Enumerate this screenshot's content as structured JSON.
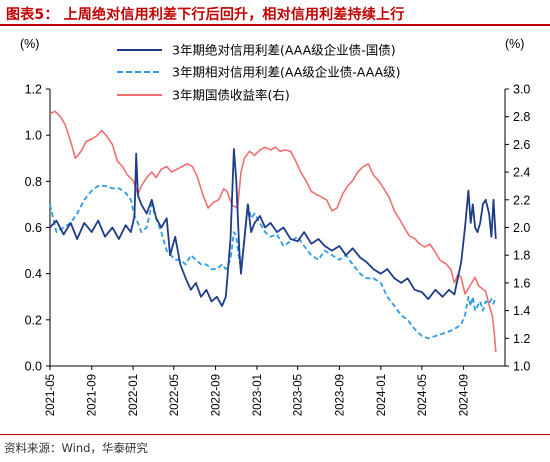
{
  "header": {
    "title": "图表5：  上周绝对信用利差下行后回升，相对信用利差持续上行"
  },
  "footer": {
    "source": "资料来源：Wind，华泰研究"
  },
  "chart_data": {
    "type": "line",
    "title": "图表5：  上周绝对信用利差下行后回升，相对信用利差持续上行",
    "y_left": {
      "label": "(%)",
      "range": [
        0.0,
        1.2
      ],
      "ticks": [
        "0.0",
        "0.2",
        "0.4",
        "0.6",
        "0.8",
        "1.0",
        "1.2"
      ]
    },
    "y_right": {
      "label": "(%)",
      "range": [
        1.0,
        3.0
      ],
      "ticks": [
        "1.0",
        "1.2",
        "1.4",
        "1.6",
        "1.8",
        "2.0",
        "2.2",
        "2.4",
        "2.6",
        "2.8",
        "3.0"
      ]
    },
    "x_range": [
      "2021-05",
      "2025-01"
    ],
    "x_ticks": [
      "2021-05",
      "2021-09",
      "2022-01",
      "2022-05",
      "2022-09",
      "2023-01",
      "2023-05",
      "2023-09",
      "2024-01",
      "2024-05",
      "2024-09"
    ],
    "legend_position": "top-center",
    "grid": false,
    "series": [
      {
        "name": "3年期绝对信用利差(AAA级企业债-国债)",
        "axis": "left",
        "color": "#1f3c88",
        "style": "solid",
        "points": [
          [
            "2021-05-01",
            0.6
          ],
          [
            "2021-05-20",
            0.63
          ],
          [
            "2021-06-10",
            0.57
          ],
          [
            "2021-07-01",
            0.62
          ],
          [
            "2021-07-20",
            0.55
          ],
          [
            "2021-08-10",
            0.62
          ],
          [
            "2021-09-01",
            0.58
          ],
          [
            "2021-09-20",
            0.63
          ],
          [
            "2021-10-10",
            0.56
          ],
          [
            "2021-11-01",
            0.6
          ],
          [
            "2021-11-20",
            0.55
          ],
          [
            "2021-12-10",
            0.61
          ],
          [
            "2021-12-25",
            0.58
          ],
          [
            "2022-01-05",
            0.65
          ],
          [
            "2022-01-10",
            0.92
          ],
          [
            "2022-01-15",
            0.74
          ],
          [
            "2022-01-25",
            0.7
          ],
          [
            "2022-02-10",
            0.66
          ],
          [
            "2022-02-25",
            0.72
          ],
          [
            "2022-03-10",
            0.64
          ],
          [
            "2022-03-25",
            0.6
          ],
          [
            "2022-04-10",
            0.64
          ],
          [
            "2022-04-20",
            0.48
          ],
          [
            "2022-05-05",
            0.56
          ],
          [
            "2022-05-20",
            0.44
          ],
          [
            "2022-06-05",
            0.38
          ],
          [
            "2022-06-20",
            0.33
          ],
          [
            "2022-07-05",
            0.36
          ],
          [
            "2022-07-20",
            0.3
          ],
          [
            "2022-08-05",
            0.33
          ],
          [
            "2022-08-20",
            0.28
          ],
          [
            "2022-09-05",
            0.3
          ],
          [
            "2022-09-20",
            0.26
          ],
          [
            "2022-10-01",
            0.3
          ],
          [
            "2022-10-15",
            0.55
          ],
          [
            "2022-10-25",
            0.94
          ],
          [
            "2022-11-01",
            0.8
          ],
          [
            "2022-11-10",
            0.5
          ],
          [
            "2022-11-15",
            0.4
          ],
          [
            "2022-11-25",
            0.55
          ],
          [
            "2022-12-05",
            0.7
          ],
          [
            "2022-12-15",
            0.58
          ],
          [
            "2022-12-25",
            0.62
          ],
          [
            "2023-01-10",
            0.65
          ],
          [
            "2023-01-25",
            0.6
          ],
          [
            "2023-02-10",
            0.62
          ],
          [
            "2023-03-01",
            0.58
          ],
          [
            "2023-03-20",
            0.6
          ],
          [
            "2023-04-10",
            0.55
          ],
          [
            "2023-05-01",
            0.54
          ],
          [
            "2023-05-20",
            0.58
          ],
          [
            "2023-06-10",
            0.53
          ],
          [
            "2023-07-01",
            0.55
          ],
          [
            "2023-07-20",
            0.52
          ],
          [
            "2023-08-10",
            0.5
          ],
          [
            "2023-09-01",
            0.52
          ],
          [
            "2023-09-20",
            0.48
          ],
          [
            "2023-10-10",
            0.51
          ],
          [
            "2023-11-01",
            0.47
          ],
          [
            "2023-11-20",
            0.45
          ],
          [
            "2023-12-10",
            0.42
          ],
          [
            "2024-01-01",
            0.4
          ],
          [
            "2024-01-20",
            0.42
          ],
          [
            "2024-02-10",
            0.38
          ],
          [
            "2024-03-01",
            0.36
          ],
          [
            "2024-03-20",
            0.38
          ],
          [
            "2024-04-10",
            0.33
          ],
          [
            "2024-05-01",
            0.32
          ],
          [
            "2024-05-20",
            0.29
          ],
          [
            "2024-06-10",
            0.33
          ],
          [
            "2024-07-01",
            0.3
          ],
          [
            "2024-07-20",
            0.33
          ],
          [
            "2024-08-05",
            0.31
          ],
          [
            "2024-08-15",
            0.38
          ],
          [
            "2024-08-25",
            0.45
          ],
          [
            "2024-09-05",
            0.6
          ],
          [
            "2024-09-15",
            0.76
          ],
          [
            "2024-09-22",
            0.62
          ],
          [
            "2024-09-28",
            0.7
          ],
          [
            "2024-10-05",
            0.6
          ],
          [
            "2024-10-12",
            0.58
          ],
          [
            "2024-10-20",
            0.62
          ],
          [
            "2024-10-28",
            0.7
          ],
          [
            "2024-11-05",
            0.72
          ],
          [
            "2024-11-15",
            0.66
          ],
          [
            "2024-11-22",
            0.56
          ],
          [
            "2024-11-28",
            0.72
          ],
          [
            "2024-12-05",
            0.55
          ]
        ]
      },
      {
        "name": "3年期相对信用利差(AA级企业债-AAA级)",
        "axis": "left",
        "color": "#2e9be6",
        "style": "dashed",
        "points": [
          [
            "2021-05-01",
            0.7
          ],
          [
            "2021-05-20",
            0.58
          ],
          [
            "2021-06-10",
            0.6
          ],
          [
            "2021-07-01",
            0.62
          ],
          [
            "2021-07-20",
            0.66
          ],
          [
            "2021-08-10",
            0.72
          ],
          [
            "2021-09-01",
            0.76
          ],
          [
            "2021-09-20",
            0.78
          ],
          [
            "2021-10-10",
            0.78
          ],
          [
            "2021-11-01",
            0.77
          ],
          [
            "2021-11-20",
            0.77
          ],
          [
            "2021-12-10",
            0.75
          ],
          [
            "2021-12-25",
            0.72
          ],
          [
            "2022-01-05",
            0.65
          ],
          [
            "2022-01-15",
            0.62
          ],
          [
            "2022-01-25",
            0.58
          ],
          [
            "2022-02-10",
            0.6
          ],
          [
            "2022-02-25",
            0.7
          ],
          [
            "2022-03-10",
            0.64
          ],
          [
            "2022-03-25",
            0.58
          ],
          [
            "2022-04-10",
            0.5
          ],
          [
            "2022-05-05",
            0.46
          ],
          [
            "2022-05-20",
            0.46
          ],
          [
            "2022-06-05",
            0.44
          ],
          [
            "2022-06-20",
            0.48
          ],
          [
            "2022-07-05",
            0.46
          ],
          [
            "2022-07-20",
            0.44
          ],
          [
            "2022-08-05",
            0.44
          ],
          [
            "2022-08-20",
            0.42
          ],
          [
            "2022-09-05",
            0.42
          ],
          [
            "2022-09-20",
            0.44
          ],
          [
            "2022-10-01",
            0.42
          ],
          [
            "2022-10-15",
            0.46
          ],
          [
            "2022-10-25",
            0.58
          ],
          [
            "2022-11-01",
            0.56
          ],
          [
            "2022-11-10",
            0.46
          ],
          [
            "2022-11-15",
            0.42
          ],
          [
            "2022-11-25",
            0.55
          ],
          [
            "2022-12-05",
            0.7
          ],
          [
            "2022-12-15",
            0.64
          ],
          [
            "2022-12-25",
            0.66
          ],
          [
            "2023-01-10",
            0.62
          ],
          [
            "2023-01-25",
            0.58
          ],
          [
            "2023-02-10",
            0.56
          ],
          [
            "2023-03-01",
            0.57
          ],
          [
            "2023-03-20",
            0.52
          ],
          [
            "2023-04-10",
            0.54
          ],
          [
            "2023-05-01",
            0.56
          ],
          [
            "2023-05-20",
            0.52
          ],
          [
            "2023-06-10",
            0.48
          ],
          [
            "2023-07-01",
            0.46
          ],
          [
            "2023-07-20",
            0.5
          ],
          [
            "2023-08-10",
            0.48
          ],
          [
            "2023-09-01",
            0.46
          ],
          [
            "2023-09-20",
            0.48
          ],
          [
            "2023-10-10",
            0.44
          ],
          [
            "2023-11-01",
            0.4
          ],
          [
            "2023-11-20",
            0.38
          ],
          [
            "2023-12-10",
            0.38
          ],
          [
            "2024-01-01",
            0.36
          ],
          [
            "2024-01-20",
            0.3
          ],
          [
            "2024-02-10",
            0.26
          ],
          [
            "2024-03-01",
            0.22
          ],
          [
            "2024-03-20",
            0.2
          ],
          [
            "2024-04-10",
            0.16
          ],
          [
            "2024-05-01",
            0.13
          ],
          [
            "2024-05-20",
            0.12
          ],
          [
            "2024-06-10",
            0.13
          ],
          [
            "2024-07-01",
            0.14
          ],
          [
            "2024-07-20",
            0.15
          ],
          [
            "2024-08-05",
            0.16
          ],
          [
            "2024-08-15",
            0.17
          ],
          [
            "2024-08-25",
            0.18
          ],
          [
            "2024-09-05",
            0.22
          ],
          [
            "2024-09-15",
            0.3
          ],
          [
            "2024-09-22",
            0.26
          ],
          [
            "2024-09-28",
            0.3
          ],
          [
            "2024-10-05",
            0.24
          ],
          [
            "2024-10-12",
            0.26
          ],
          [
            "2024-10-20",
            0.28
          ],
          [
            "2024-10-28",
            0.24
          ],
          [
            "2024-11-05",
            0.28
          ],
          [
            "2024-11-15",
            0.27
          ],
          [
            "2024-11-22",
            0.29
          ],
          [
            "2024-11-28",
            0.27
          ],
          [
            "2024-12-05",
            0.3
          ]
        ]
      },
      {
        "name": "3年期国债收益率(右)",
        "axis": "right",
        "color": "#f07070",
        "style": "solid",
        "points": [
          [
            "2021-05-01",
            2.82
          ],
          [
            "2021-05-15",
            2.84
          ],
          [
            "2021-06-01",
            2.8
          ],
          [
            "2021-06-15",
            2.74
          ],
          [
            "2021-07-01",
            2.62
          ],
          [
            "2021-07-15",
            2.5
          ],
          [
            "2021-08-01",
            2.55
          ],
          [
            "2021-08-15",
            2.62
          ],
          [
            "2021-09-01",
            2.64
          ],
          [
            "2021-09-15",
            2.66
          ],
          [
            "2021-10-01",
            2.7
          ],
          [
            "2021-10-15",
            2.66
          ],
          [
            "2021-11-01",
            2.6
          ],
          [
            "2021-11-15",
            2.48
          ],
          [
            "2021-12-01",
            2.44
          ],
          [
            "2021-12-15",
            2.38
          ],
          [
            "2022-01-01",
            2.34
          ],
          [
            "2022-01-15",
            2.24
          ],
          [
            "2022-01-25",
            2.3
          ],
          [
            "2022-02-10",
            2.36
          ],
          [
            "2022-02-25",
            2.4
          ],
          [
            "2022-03-10",
            2.36
          ],
          [
            "2022-03-25",
            2.42
          ],
          [
            "2022-04-10",
            2.44
          ],
          [
            "2022-04-25",
            2.4
          ],
          [
            "2022-05-10",
            2.42
          ],
          [
            "2022-05-25",
            2.44
          ],
          [
            "2022-06-10",
            2.46
          ],
          [
            "2022-06-25",
            2.44
          ],
          [
            "2022-07-10",
            2.36
          ],
          [
            "2022-07-25",
            2.24
          ],
          [
            "2022-08-10",
            2.14
          ],
          [
            "2022-08-25",
            2.18
          ],
          [
            "2022-09-10",
            2.2
          ],
          [
            "2022-09-25",
            2.28
          ],
          [
            "2022-10-05",
            2.26
          ],
          [
            "2022-10-20",
            2.16
          ],
          [
            "2022-11-05",
            2.14
          ],
          [
            "2022-11-15",
            2.4
          ],
          [
            "2022-11-25",
            2.5
          ],
          [
            "2022-12-10",
            2.55
          ],
          [
            "2022-12-25",
            2.52
          ],
          [
            "2023-01-10",
            2.56
          ],
          [
            "2023-01-25",
            2.58
          ],
          [
            "2023-02-10",
            2.56
          ],
          [
            "2023-02-25",
            2.58
          ],
          [
            "2023-03-10",
            2.55
          ],
          [
            "2023-03-25",
            2.56
          ],
          [
            "2023-04-10",
            2.55
          ],
          [
            "2023-04-25",
            2.48
          ],
          [
            "2023-05-10",
            2.4
          ],
          [
            "2023-05-25",
            2.34
          ],
          [
            "2023-06-10",
            2.26
          ],
          [
            "2023-06-25",
            2.24
          ],
          [
            "2023-07-10",
            2.22
          ],
          [
            "2023-07-25",
            2.2
          ],
          [
            "2023-08-10",
            2.12
          ],
          [
            "2023-08-25",
            2.14
          ],
          [
            "2023-09-10",
            2.24
          ],
          [
            "2023-09-25",
            2.3
          ],
          [
            "2023-10-10",
            2.34
          ],
          [
            "2023-10-25",
            2.4
          ],
          [
            "2023-11-10",
            2.44
          ],
          [
            "2023-11-25",
            2.46
          ],
          [
            "2023-12-10",
            2.38
          ],
          [
            "2023-12-25",
            2.34
          ],
          [
            "2024-01-10",
            2.28
          ],
          [
            "2024-01-25",
            2.22
          ],
          [
            "2024-02-10",
            2.12
          ],
          [
            "2024-02-25",
            2.06
          ],
          [
            "2024-03-10",
            2.0
          ],
          [
            "2024-03-25",
            1.94
          ],
          [
            "2024-04-10",
            1.92
          ],
          [
            "2024-04-25",
            1.88
          ],
          [
            "2024-05-10",
            1.86
          ],
          [
            "2024-05-25",
            1.88
          ],
          [
            "2024-06-10",
            1.82
          ],
          [
            "2024-06-25",
            1.76
          ],
          [
            "2024-07-10",
            1.74
          ],
          [
            "2024-07-25",
            1.7
          ],
          [
            "2024-08-05",
            1.6
          ],
          [
            "2024-08-15",
            1.66
          ],
          [
            "2024-08-25",
            1.64
          ],
          [
            "2024-09-05",
            1.52
          ],
          [
            "2024-09-15",
            1.56
          ],
          [
            "2024-09-25",
            1.6
          ],
          [
            "2024-10-05",
            1.64
          ],
          [
            "2024-10-15",
            1.58
          ],
          [
            "2024-10-25",
            1.56
          ],
          [
            "2024-11-05",
            1.54
          ],
          [
            "2024-11-15",
            1.44
          ],
          [
            "2024-11-25",
            1.36
          ],
          [
            "2024-12-01",
            1.22
          ],
          [
            "2024-12-05",
            1.1
          ]
        ]
      }
    ]
  }
}
